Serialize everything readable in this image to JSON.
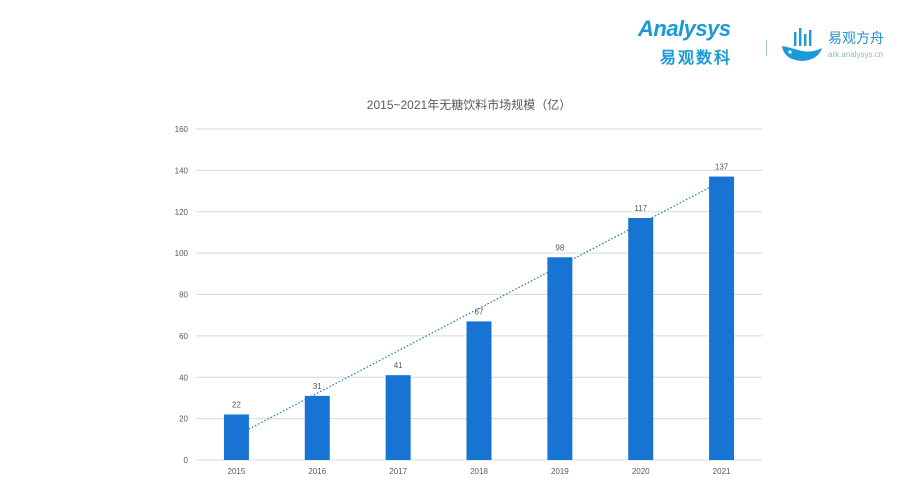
{
  "branding": {
    "analysys_word": "Analysys",
    "analysys_cn": "易观数科",
    "ark_cn": "易观方舟",
    "ark_url": "ark.analysys.cn",
    "brand_color": "#1a9ad6"
  },
  "chart_data": {
    "type": "bar",
    "title": "2015~2021年无糖饮料市场规模（亿）",
    "xlabel": "",
    "ylabel": "",
    "categories": [
      "2015",
      "2016",
      "2017",
      "2018",
      "2019",
      "2020",
      "2021"
    ],
    "values": [
      22,
      31,
      41,
      67,
      98,
      117,
      137
    ],
    "data_labels": [
      "22",
      "31",
      "41",
      "67",
      "98",
      "117",
      "137"
    ],
    "ylim": [
      0,
      160
    ],
    "yticks": [
      "0",
      "20",
      "40",
      "60",
      "80",
      "100",
      "120",
      "140",
      "160"
    ],
    "grid": true,
    "trendline": "linear, dotted",
    "bar_color": "#1874d2",
    "trend_color": "#1874d2",
    "grid_color": "#d9d9d9"
  }
}
